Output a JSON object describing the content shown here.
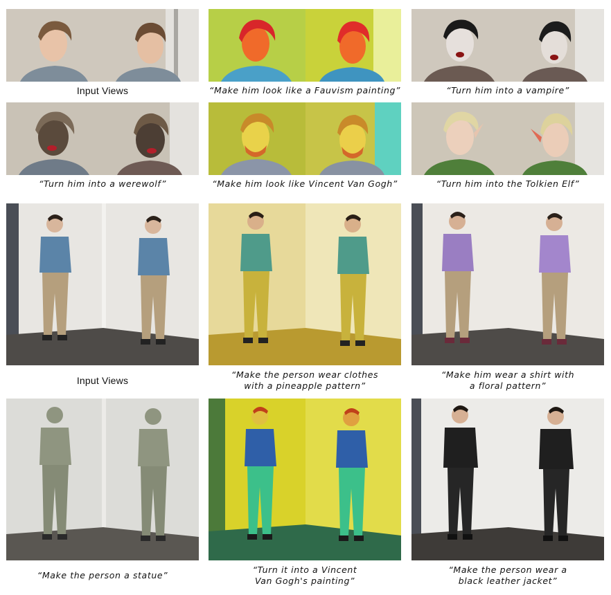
{
  "face_section": {
    "row1_captions": [
      "Input Views",
      "“Make him look like a Fauvism painting”",
      "“Turn him into a vampire”"
    ],
    "row2_captions": [
      "“Turn him into a werewolf”",
      "“Make him look like Vincent Van Gogh”",
      "“Turn him into the Tolkien Elf”"
    ]
  },
  "body_section": {
    "row1_captions": [
      "Input Views",
      "“Make the person wear clothes\nwith a pineapple pattern”",
      "“Make him wear a shirt with\na floral pattern”"
    ],
    "row2_captions": [
      "“Make the person a statue”",
      "“Turn it into a Vincent\nVan Gogh's painting”",
      "“Make the person wear a\nblack leather jacket”"
    ]
  },
  "colors": {
    "input_wall": "#cfc8bd",
    "input_sweater": "#7e8d9a",
    "fauvism_bg": "#c9d23a",
    "fauvism_face": "#f06a2a",
    "vampire_skin": "#e6e0dc",
    "werewolf_fur": "#5a4a3c",
    "vangogh_bg": "#b8bc3a",
    "elf_sweater": "#4f7f3a",
    "body_wall": "#e8e6e2",
    "body_shirt": "#5b84a8",
    "body_pants": "#b59f7d",
    "pineapple_shirt": "#4f9b8a",
    "pineapple_pants": "#c8b23c",
    "floral_shirt": "#9a7ec2",
    "statue": "#8f9580",
    "vg_body_bg": "#d9d22a",
    "vg_shirt": "#2f5fa8",
    "vg_pants": "#3cc08a",
    "leather": "#1f1f1f"
  }
}
